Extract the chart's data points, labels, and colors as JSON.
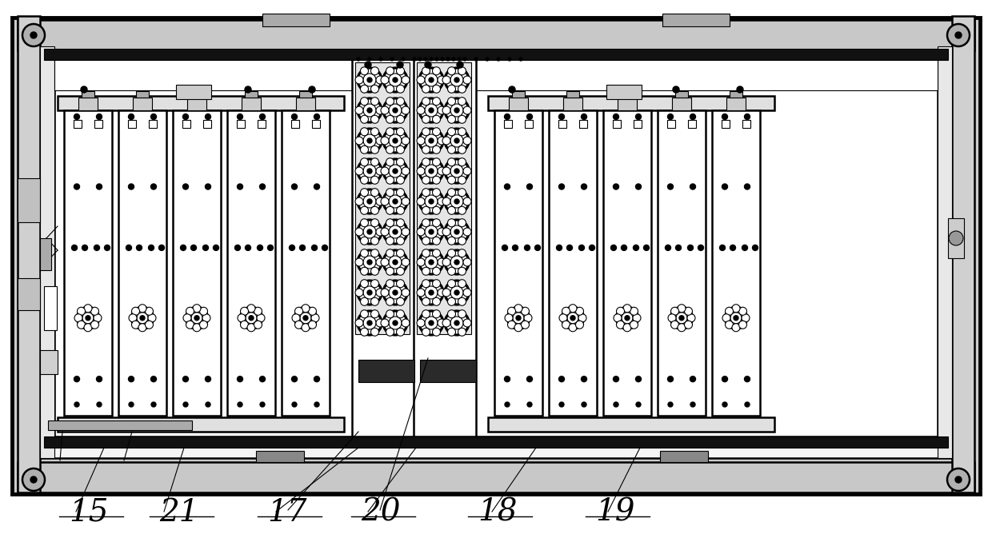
{
  "bg_color": "#ffffff",
  "fig_width": 12.4,
  "fig_height": 6.68,
  "dpi": 100,
  "labels": [
    "15",
    "21",
    "17",
    "20",
    "18",
    "19"
  ],
  "label_fontsize": 28,
  "lw_thin": 0.8,
  "lw_med": 1.8,
  "lw_thick": 3.5
}
